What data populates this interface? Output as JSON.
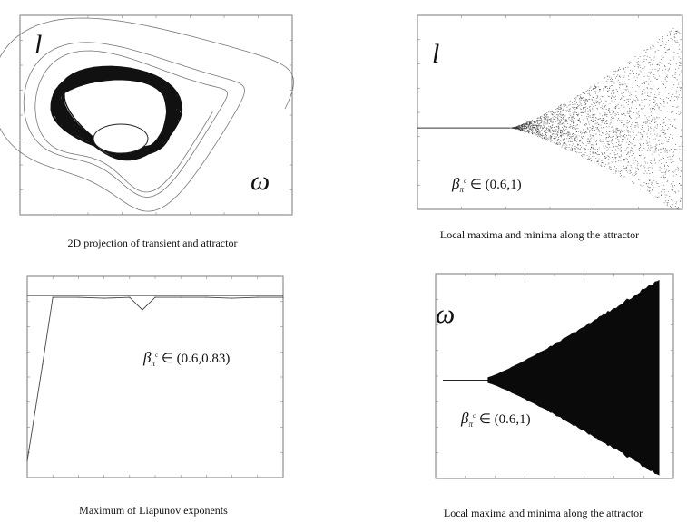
{
  "panels": [
    {
      "id": "p1",
      "variable_label": "l",
      "second_label": "ω",
      "caption": "2D projection of  transient and attractor",
      "plot_kind": "phase-portrait"
    },
    {
      "id": "p2",
      "variable_label": "l",
      "annotation": {
        "symbol": "β",
        "subscript": "π",
        "superscript": "c",
        "range": "∈ (0.6,1)"
      },
      "caption": "Local maxima and minima along the attractor",
      "plot_kind": "bifurcation"
    },
    {
      "id": "p3",
      "annotation": {
        "symbol": "β",
        "subscript": "π",
        "superscript": "c",
        "range": "∈ (0.6,0.83)"
      },
      "caption": "Maximum of Liapunov exponents",
      "plot_kind": "lyapunov"
    },
    {
      "id": "p4",
      "variable_label": "ω",
      "annotation": {
        "symbol": "β",
        "subscript": "π",
        "superscript": "c",
        "range": "∈ (0.6,1)"
      },
      "caption": "Local maxima and minima along the attractor",
      "plot_kind": "bifurcation-filled"
    }
  ],
  "chart_data": [
    {
      "type": "line",
      "title": "",
      "xlabel": "ω",
      "ylabel": "l",
      "description_of_marks": "transient spiral converging into dense attractor ring",
      "grid": false
    },
    {
      "type": "scatter",
      "title": "",
      "xlabel": "",
      "ylabel": "l",
      "bifurcation_parameter_range": [
        0.6,
        1.0
      ],
      "grid": false
    },
    {
      "type": "line",
      "title": "",
      "xlabel": "",
      "ylabel": "",
      "parameter_range": [
        0.6,
        0.83
      ],
      "series": [
        {
          "name": "",
          "x": [
            0.0,
            0.6,
            1.0,
            2.0,
            3.0,
            4.0,
            4.5,
            5.0,
            6.0,
            7.0,
            8.0,
            9.0,
            10.0
          ],
          "y": [
            -1.0,
            0.15,
            0.95,
            0.95,
            0.94,
            0.95,
            0.8,
            0.95,
            0.95,
            0.95,
            0.94,
            0.95,
            0.95
          ]
        }
      ],
      "grid": false
    },
    {
      "type": "area",
      "title": "",
      "xlabel": "",
      "ylabel": "ω",
      "bifurcation_parameter_range": [
        0.6,
        1.0
      ],
      "grid": false
    }
  ]
}
